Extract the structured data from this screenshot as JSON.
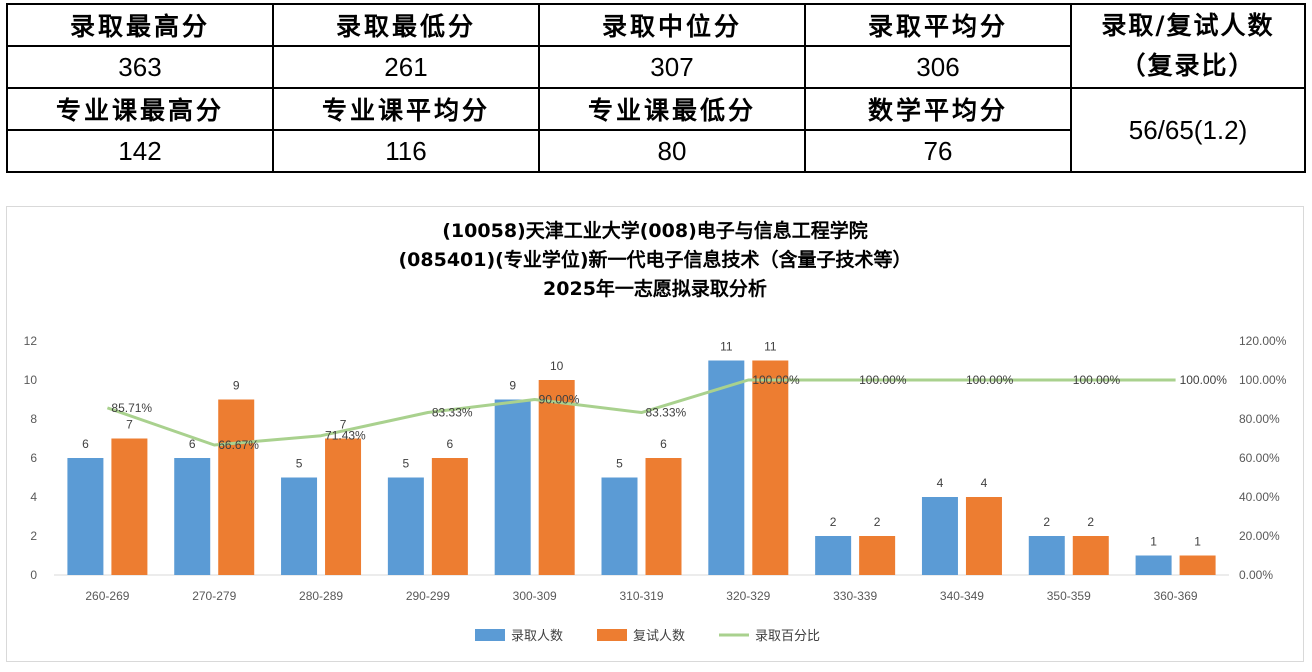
{
  "stats_table": {
    "row1_headers": [
      "录取最高分",
      "录取最低分",
      "录取中位分",
      "录取平均分"
    ],
    "row1_values": [
      "363",
      "261",
      "307",
      "306"
    ],
    "row2_headers": [
      "专业课最高分",
      "专业课平均分",
      "专业课最低分",
      "数学平均分"
    ],
    "row2_values": [
      "142",
      "116",
      "80",
      "76"
    ],
    "ratio_header_line1": "录取/复试人数",
    "ratio_header_line2": "（复录比）",
    "ratio_value": "56/65(1.2)"
  },
  "chart_data": {
    "type": "bar",
    "title_lines": [
      "(10058)天津工业大学(008)电子与信息工程学院",
      "(085401)(专业学位)新一代电子信息技术（含量子技术等）",
      "2025年一志愿拟录取分析"
    ],
    "categories": [
      "260-269",
      "270-279",
      "280-289",
      "290-299",
      "300-309",
      "310-319",
      "320-329",
      "330-339",
      "340-349",
      "350-359",
      "360-369"
    ],
    "series": [
      {
        "name": "录取人数",
        "type": "bar",
        "axis": "left",
        "color": "#5b9bd5",
        "values": [
          6,
          6,
          5,
          5,
          9,
          5,
          11,
          2,
          4,
          2,
          1
        ]
      },
      {
        "name": "复试人数",
        "type": "bar",
        "axis": "left",
        "color": "#ed7d31",
        "values": [
          7,
          9,
          7,
          6,
          10,
          6,
          11,
          2,
          4,
          2,
          1
        ]
      },
      {
        "name": "录取百分比",
        "type": "line",
        "axis": "right",
        "color": "#a9d18e",
        "values": [
          85.71,
          66.67,
          71.43,
          83.33,
          90.0,
          83.33,
          100.0,
          100.0,
          100.0,
          100.0,
          100.0
        ],
        "labels": [
          "85.71%",
          "66.67%",
          "71.43%",
          "83.33%",
          "90.00%",
          "83.33%",
          "100.00%",
          "100.00%",
          "100.00%",
          "100.00%",
          "100.00%"
        ]
      }
    ],
    "y_left": {
      "min": 0,
      "max": 12,
      "ticks": [
        "0",
        "2",
        "4",
        "6",
        "8",
        "10",
        "12"
      ]
    },
    "y_right": {
      "min": 0,
      "max": 120,
      "ticks": [
        "0.00%",
        "20.00%",
        "40.00%",
        "60.00%",
        "80.00%",
        "100.00%",
        "120.00%"
      ]
    },
    "grid": false,
    "legend_position": "bottom"
  }
}
